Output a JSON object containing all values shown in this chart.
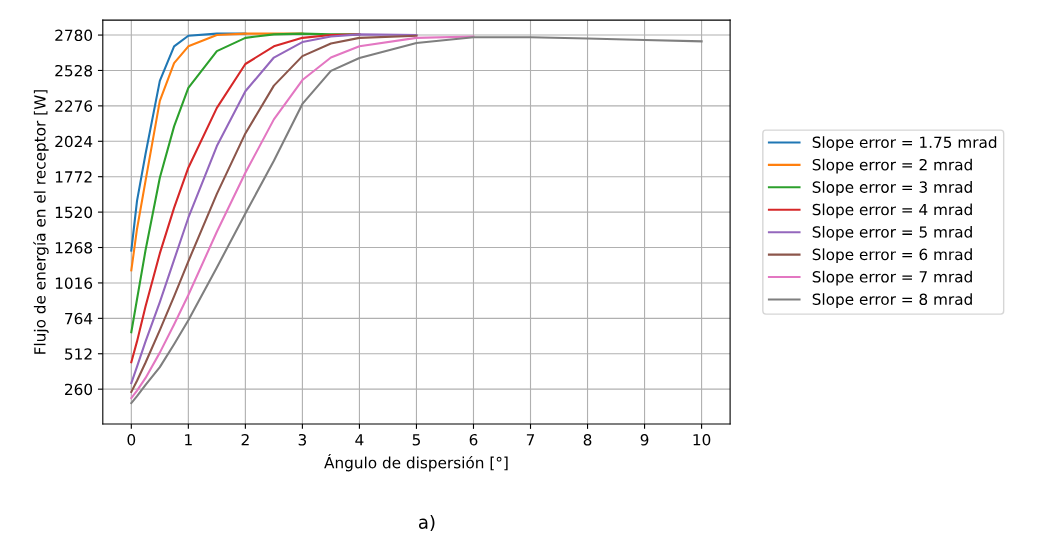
{
  "chart_data": {
    "type": "line",
    "xlabel": "Ángulo de dispersión [°]",
    "ylabel": "Flujo de energía en el receptor [W]",
    "x": [
      0,
      0.1,
      0.25,
      0.5,
      0.75,
      1,
      1.5,
      2,
      2.5,
      3,
      3.5,
      4,
      5,
      6,
      7,
      8,
      9,
      10
    ],
    "series": [
      {
        "name": "Slope error = 1.75 mrad",
        "color": "#1f77b4",
        "values": [
          1247,
          1600,
          1935,
          2454,
          2700,
          2775,
          2790,
          2790,
          null,
          null,
          null,
          null,
          null,
          null,
          null,
          null,
          null,
          null
        ]
      },
      {
        "name": "Slope error = 2 mrad",
        "color": "#ff7f0e",
        "values": [
          1105,
          1400,
          1744,
          2312,
          2580,
          2700,
          2780,
          2790,
          2790,
          2790,
          null,
          null,
          null,
          null,
          null,
          null,
          null,
          null
        ]
      },
      {
        "name": "Slope error = 3 mrad",
        "color": "#2ca02c",
        "values": [
          665,
          900,
          1250,
          1765,
          2130,
          2404,
          2666,
          2760,
          2785,
          2790,
          2785,
          2785,
          null,
          null,
          null,
          null,
          null,
          null
        ]
      },
      {
        "name": "Slope error = 4 mrad",
        "color": "#d62728",
        "values": [
          452,
          600,
          850,
          1226,
          1550,
          1836,
          2262,
          2574,
          2700,
          2760,
          2780,
          2785,
          null,
          null,
          null,
          null,
          null,
          null
        ]
      },
      {
        "name": "Slope error = 5 mrad",
        "color": "#9467bd",
        "values": [
          303,
          420,
          600,
          880,
          1180,
          1480,
          1990,
          2380,
          2620,
          2730,
          2770,
          2785,
          2780,
          null,
          null,
          null,
          null,
          null
        ]
      },
      {
        "name": "Slope error = 6 mrad",
        "color": "#8c564b",
        "values": [
          240,
          320,
          450,
          680,
          920,
          1170,
          1650,
          2080,
          2420,
          2630,
          2720,
          2760,
          2775,
          null,
          null,
          null,
          null,
          null
        ]
      },
      {
        "name": "Slope error = 7 mrad",
        "color": "#e377c2",
        "values": [
          197,
          250,
          340,
          520,
          720,
          930,
          1380,
          1800,
          2180,
          2460,
          2620,
          2700,
          2760,
          2770,
          null,
          null,
          null,
          null
        ]
      },
      {
        "name": "Slope error = 8 mrad",
        "color": "#7f7f7f",
        "values": [
          161,
          210,
          290,
          417,
          580,
          750,
          1126,
          1510,
          1886,
          2290,
          2525,
          2617,
          2723,
          2765,
          2765,
          2755,
          2745,
          2735
        ]
      }
    ],
    "xlim": [
      -0.5,
      10.5
    ],
    "xticks": [
      0,
      1,
      2,
      3,
      4,
      5,
      6,
      7,
      8,
      9,
      10
    ],
    "ylim": [
      12,
      2886
    ],
    "yticks": [
      260,
      512,
      764,
      1016,
      1268,
      1520,
      1772,
      2024,
      2276,
      2528,
      2780
    ],
    "grid": true,
    "legend": "right",
    "marker": "none",
    "line_style": "solid",
    "annotations": [
      "a)"
    ]
  }
}
